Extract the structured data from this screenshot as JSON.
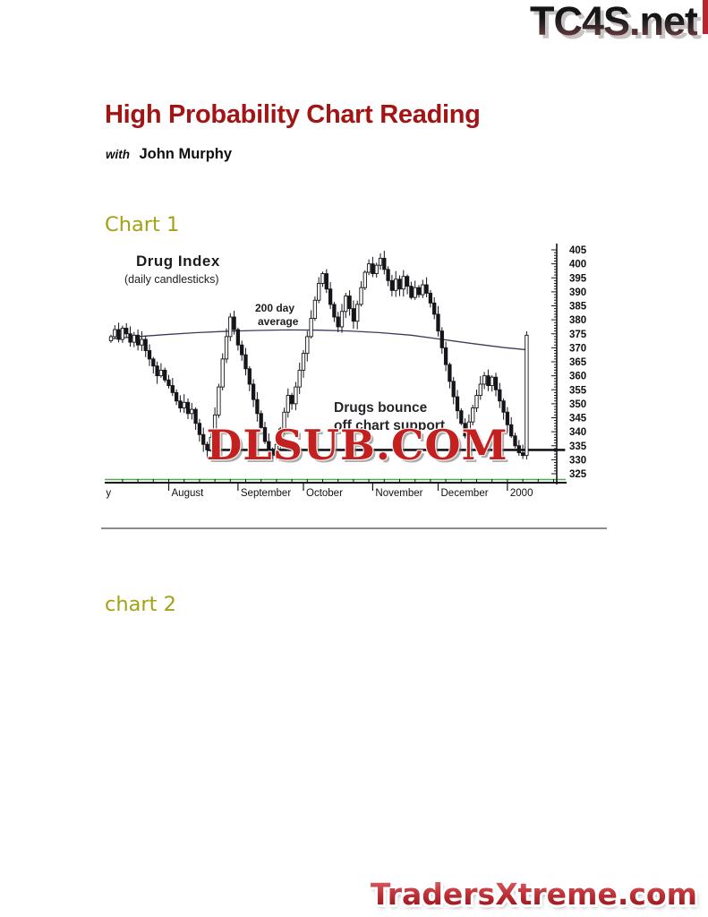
{
  "page": {
    "top_logo": "TC4S.net",
    "title": "High Probability Chart Reading",
    "byline": {
      "prefix": "with",
      "name": "John Murphy"
    },
    "section1_heading": "Chart 1",
    "section2_heading": "chart 2",
    "bottom_logo": "TradersXtreme.com"
  },
  "colors": {
    "title_red": "#a31414",
    "heading_olive": "#a2a214",
    "logo_red": "#b7262c",
    "corner_strip_red": "#b9262e",
    "divider_gray": "#8c8c8c",
    "scan_green": "#4fae4a",
    "watermark_red": "#c32020",
    "candle_ink": "#15151a",
    "ma_line": "#3c3c5a"
  },
  "chart_data": {
    "type": "candlestick",
    "labels": {
      "title": "Drug Index",
      "subtitle": "(daily candlesticks)",
      "ma_line1": "200 day",
      "ma_line2": "average",
      "note_line1": "Drugs bounce",
      "note_line2": "off chart support",
      "watermark": "DLSUB.COM"
    },
    "ylim": [
      325,
      405
    ],
    "y_tick_step": 5,
    "x_tick_labels": [
      "y",
      "August",
      "September",
      "October",
      "November",
      "December",
      "2000"
    ],
    "x_tick_days": [
      -2,
      15,
      33,
      50,
      68,
      85,
      103
    ],
    "support_level": 333.5,
    "support_span_days": [
      25,
      118
    ],
    "ma_days": [
      0,
      6,
      14,
      22,
      30,
      38,
      46,
      54,
      62,
      70,
      78,
      86,
      94,
      102,
      108
    ],
    "ma_values": [
      373.2,
      373.9,
      374.7,
      375.4,
      375.9,
      376.2,
      376.4,
      376.3,
      376.0,
      375.4,
      374.5,
      373.0,
      371.5,
      370.1,
      369.3
    ],
    "closes": [
      374,
      376.5,
      373,
      377,
      375,
      372,
      374.5,
      371,
      373,
      369,
      366,
      363.5,
      360,
      362,
      358.5,
      356.5,
      354,
      351,
      348.5,
      350.5,
      346.5,
      348,
      343,
      339,
      335.5,
      333.5,
      338,
      346,
      356,
      366,
      374,
      381,
      376.5,
      371,
      367.5,
      362.5,
      357,
      351.5,
      346.5,
      341.5,
      336.5,
      333,
      331.5,
      335.5,
      341,
      347,
      353,
      350,
      356,
      362,
      368,
      374,
      380.5,
      387,
      393,
      396.5,
      391,
      385.5,
      381,
      377.5,
      383,
      388.5,
      384,
      379.5,
      385.5,
      391.5,
      397,
      400,
      396.5,
      399.5,
      402,
      398,
      394,
      390.5,
      394.5,
      391,
      395.5,
      392,
      388,
      391.5,
      389,
      392.5,
      389.5,
      386,
      382,
      376,
      370,
      364,
      358,
      352.5,
      347.5,
      343,
      338.5,
      343.5,
      348.5,
      353,
      357,
      360,
      356.5,
      359.5,
      355,
      351,
      347,
      342.5,
      338.5,
      335,
      332.5,
      331.5,
      374.5
    ]
  }
}
